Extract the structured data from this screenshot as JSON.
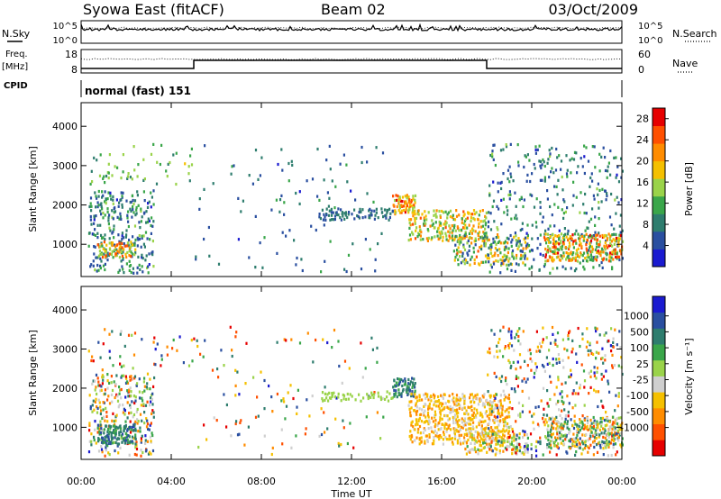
{
  "header": {
    "station": "Syowa East (fitACF)",
    "beam": "Beam 02",
    "date": "03/Oct/2009"
  },
  "left_labels": {
    "nsky": "N.Sky",
    "freq": "Freq.",
    "freq_unit": "[MHz]",
    "cpid": "CPID"
  },
  "right_labels": {
    "nsearch": "N.Search",
    "nave": "Nave"
  },
  "cpid_text": "normal (fast) 151",
  "noise_panel": {
    "left_ticks": [
      "10^5",
      "10^0"
    ],
    "right_ticks": [
      "10^5",
      "10^0"
    ]
  },
  "freq_panel": {
    "left_ticks": [
      "18",
      "8"
    ],
    "right_ticks": [
      "60",
      "0"
    ]
  },
  "colors": {
    "velocity_palette": [
      "#1b1bd0",
      "#2a4fa0",
      "#2e7d6e",
      "#3aa64a",
      "#9ad34a",
      "#cfcfcf",
      "#f5c000",
      "#ff8c00",
      "#ff5000",
      "#e60000"
    ],
    "power_palette": [
      "#1b1bd0",
      "#2a4fa0",
      "#2e7d6e",
      "#3aa64a",
      "#9ad34a",
      "#f5c000",
      "#ff8c00",
      "#ff5000",
      "#e60000"
    ]
  },
  "chart_data": [
    {
      "type": "heatmap",
      "name": "power",
      "ylabel": "Slant Range [km]",
      "y_ticks": [
        "1000",
        "2000",
        "3000",
        "4000"
      ],
      "ylim": [
        180,
        4600
      ],
      "xlim_hours": [
        0,
        24
      ],
      "colorbar_label": "Power [dB]",
      "colorbar_ticks": [
        "4",
        "8",
        "12",
        "16",
        "20",
        "24",
        "28"
      ],
      "colorbar_range": [
        0,
        30
      ],
      "blobs": [
        {
          "t0": 0.3,
          "t1": 3.2,
          "r0": 300,
          "r1": 2400,
          "lo": 3,
          "hi": 14,
          "density": 0.28
        },
        {
          "t0": 0.7,
          "t1": 2.4,
          "r0": 700,
          "r1": 1100,
          "lo": 12,
          "hi": 27,
          "density": 0.75
        },
        {
          "t0": 0.3,
          "t1": 5.0,
          "r0": 2500,
          "r1": 3600,
          "lo": 8,
          "hi": 17,
          "density": 0.08
        },
        {
          "t0": 5.0,
          "t1": 13.5,
          "r0": 300,
          "r1": 3600,
          "lo": 3,
          "hi": 11,
          "density": 0.025
        },
        {
          "t0": 10.5,
          "t1": 13.8,
          "r0": 1650,
          "r1": 1950,
          "lo": 4,
          "hi": 10,
          "density": 0.55
        },
        {
          "t0": 13.8,
          "t1": 14.8,
          "r0": 1800,
          "r1": 2300,
          "lo": 14,
          "hi": 27,
          "density": 0.8
        },
        {
          "t0": 14.5,
          "t1": 18.0,
          "r0": 1100,
          "r1": 1900,
          "lo": 10,
          "hi": 24,
          "density": 0.5
        },
        {
          "t0": 16.5,
          "t1": 19.8,
          "r0": 500,
          "r1": 1300,
          "lo": 4,
          "hi": 24,
          "density": 0.45
        },
        {
          "t0": 18.0,
          "t1": 24.0,
          "r0": 300,
          "r1": 3600,
          "lo": 3,
          "hi": 14,
          "density": 0.12
        },
        {
          "t0": 20.5,
          "t1": 24.0,
          "r0": 600,
          "r1": 1300,
          "lo": 10,
          "hi": 28,
          "density": 0.6
        }
      ]
    },
    {
      "type": "heatmap",
      "name": "velocity",
      "xlabel": "Time UT",
      "ylabel": "Slant Range [km]",
      "x_ticks": [
        "00:00",
        "04:00",
        "08:00",
        "12:00",
        "16:00",
        "20:00",
        "00:00"
      ],
      "y_ticks": [
        "1000",
        "2000",
        "3000",
        "4000"
      ],
      "ylim": [
        180,
        4600
      ],
      "xlim_hours": [
        0,
        24
      ],
      "colorbar_label": "Velocity [m s⁻¹]",
      "colorbar_ticks": [
        "1000",
        "500",
        "100",
        "25",
        "-25",
        "-100",
        "-500",
        "-1000"
      ],
      "blobs": [
        {
          "t0": 0.3,
          "t1": 3.2,
          "r0": 300,
          "r1": 2400,
          "lo": 0,
          "hi": 9,
          "density": 0.28
        },
        {
          "t0": 0.7,
          "t1": 2.4,
          "r0": 600,
          "r1": 1100,
          "lo": 6,
          "hi": 8,
          "density": 0.8
        },
        {
          "t0": 0.3,
          "t1": 5.0,
          "r0": 2500,
          "r1": 3600,
          "lo": 0,
          "hi": 9,
          "density": 0.07
        },
        {
          "t0": 5.0,
          "t1": 13.5,
          "r0": 300,
          "r1": 3600,
          "lo": 0,
          "hi": 9,
          "density": 0.025
        },
        {
          "t0": 10.5,
          "t1": 13.8,
          "r0": 1700,
          "r1": 1950,
          "lo": 5,
          "hi": 5,
          "density": 0.5
        },
        {
          "t0": 13.8,
          "t1": 14.8,
          "r0": 1800,
          "r1": 2300,
          "lo": 6,
          "hi": 8,
          "density": 0.8
        },
        {
          "t0": 14.5,
          "t1": 19.0,
          "r0": 600,
          "r1": 1900,
          "lo": 2,
          "hi": 4,
          "density": 0.55
        },
        {
          "t0": 17.0,
          "t1": 19.8,
          "r0": 350,
          "r1": 900,
          "lo": 2,
          "hi": 6,
          "density": 0.45
        },
        {
          "t0": 18.0,
          "t1": 24.0,
          "r0": 300,
          "r1": 3600,
          "lo": 0,
          "hi": 9,
          "density": 0.14
        },
        {
          "t0": 20.5,
          "t1": 24.0,
          "r0": 500,
          "r1": 1300,
          "lo": 1,
          "hi": 8,
          "density": 0.6
        }
      ]
    }
  ]
}
